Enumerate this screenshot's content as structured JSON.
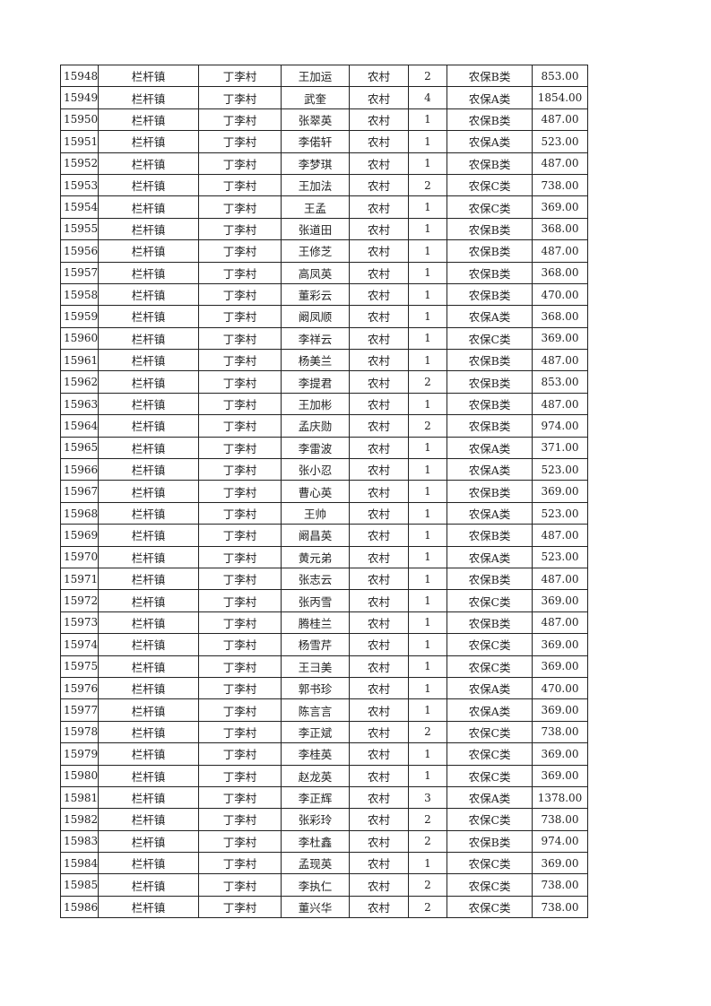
{
  "table": {
    "rows": [
      [
        "15948",
        "栏杆镇",
        "丁李村",
        "王加运",
        "农村",
        "2",
        "农保B类",
        "853.00"
      ],
      [
        "15949",
        "栏杆镇",
        "丁李村",
        "武奎",
        "农村",
        "4",
        "农保A类",
        "1854.00"
      ],
      [
        "15950",
        "栏杆镇",
        "丁李村",
        "张翠英",
        "农村",
        "1",
        "农保B类",
        "487.00"
      ],
      [
        "15951",
        "栏杆镇",
        "丁李村",
        "李偌轩",
        "农村",
        "1",
        "农保A类",
        "523.00"
      ],
      [
        "15952",
        "栏杆镇",
        "丁李村",
        "李梦琪",
        "农村",
        "1",
        "农保B类",
        "487.00"
      ],
      [
        "15953",
        "栏杆镇",
        "丁李村",
        "王加法",
        "农村",
        "2",
        "农保C类",
        "738.00"
      ],
      [
        "15954",
        "栏杆镇",
        "丁李村",
        "王孟",
        "农村",
        "1",
        "农保C类",
        "369.00"
      ],
      [
        "15955",
        "栏杆镇",
        "丁李村",
        "张道田",
        "农村",
        "1",
        "农保B类",
        "368.00"
      ],
      [
        "15956",
        "栏杆镇",
        "丁李村",
        "王修芝",
        "农村",
        "1",
        "农保B类",
        "487.00"
      ],
      [
        "15957",
        "栏杆镇",
        "丁李村",
        "高凤英",
        "农村",
        "1",
        "农保B类",
        "368.00"
      ],
      [
        "15958",
        "栏杆镇",
        "丁李村",
        "董彩云",
        "农村",
        "1",
        "农保B类",
        "470.00"
      ],
      [
        "15959",
        "栏杆镇",
        "丁李村",
        "阚凤顺",
        "农村",
        "1",
        "农保A类",
        "368.00"
      ],
      [
        "15960",
        "栏杆镇",
        "丁李村",
        "李祥云",
        "农村",
        "1",
        "农保C类",
        "369.00"
      ],
      [
        "15961",
        "栏杆镇",
        "丁李村",
        "杨美兰",
        "农村",
        "1",
        "农保B类",
        "487.00"
      ],
      [
        "15962",
        "栏杆镇",
        "丁李村",
        "李提君",
        "农村",
        "2",
        "农保B类",
        "853.00"
      ],
      [
        "15963",
        "栏杆镇",
        "丁李村",
        "王加彬",
        "农村",
        "1",
        "农保B类",
        "487.00"
      ],
      [
        "15964",
        "栏杆镇",
        "丁李村",
        "孟庆勋",
        "农村",
        "2",
        "农保B类",
        "974.00"
      ],
      [
        "15965",
        "栏杆镇",
        "丁李村",
        "李雷波",
        "农村",
        "1",
        "农保A类",
        "371.00"
      ],
      [
        "15966",
        "栏杆镇",
        "丁李村",
        "张小忍",
        "农村",
        "1",
        "农保A类",
        "523.00"
      ],
      [
        "15967",
        "栏杆镇",
        "丁李村",
        "曹心英",
        "农村",
        "1",
        "农保B类",
        "369.00"
      ],
      [
        "15968",
        "栏杆镇",
        "丁李村",
        "王帅",
        "农村",
        "1",
        "农保A类",
        "523.00"
      ],
      [
        "15969",
        "栏杆镇",
        "丁李村",
        "阚昌英",
        "农村",
        "1",
        "农保B类",
        "487.00"
      ],
      [
        "15970",
        "栏杆镇",
        "丁李村",
        "黄元弟",
        "农村",
        "1",
        "农保A类",
        "523.00"
      ],
      [
        "15971",
        "栏杆镇",
        "丁李村",
        "张志云",
        "农村",
        "1",
        "农保B类",
        "487.00"
      ],
      [
        "15972",
        "栏杆镇",
        "丁李村",
        "张丙雪",
        "农村",
        "1",
        "农保C类",
        "369.00"
      ],
      [
        "15973",
        "栏杆镇",
        "丁李村",
        "腾桂兰",
        "农村",
        "1",
        "农保B类",
        "487.00"
      ],
      [
        "15974",
        "栏杆镇",
        "丁李村",
        "杨雪芹",
        "农村",
        "1",
        "农保C类",
        "369.00"
      ],
      [
        "15975",
        "栏杆镇",
        "丁李村",
        "王彐美",
        "农村",
        "1",
        "农保C类",
        "369.00"
      ],
      [
        "15976",
        "栏杆镇",
        "丁李村",
        "郭书珍",
        "农村",
        "1",
        "农保A类",
        "470.00"
      ],
      [
        "15977",
        "栏杆镇",
        "丁李村",
        "陈言言",
        "农村",
        "1",
        "农保A类",
        "369.00"
      ],
      [
        "15978",
        "栏杆镇",
        "丁李村",
        "李正斌",
        "农村",
        "2",
        "农保C类",
        "738.00"
      ],
      [
        "15979",
        "栏杆镇",
        "丁李村",
        "李桂英",
        "农村",
        "1",
        "农保C类",
        "369.00"
      ],
      [
        "15980",
        "栏杆镇",
        "丁李村",
        "赵龙英",
        "农村",
        "1",
        "农保C类",
        "369.00"
      ],
      [
        "15981",
        "栏杆镇",
        "丁李村",
        "李正辉",
        "农村",
        "3",
        "农保A类",
        "1378.00"
      ],
      [
        "15982",
        "栏杆镇",
        "丁李村",
        "张彩玲",
        "农村",
        "2",
        "农保C类",
        "738.00"
      ],
      [
        "15983",
        "栏杆镇",
        "丁李村",
        "李杜鑫",
        "农村",
        "2",
        "农保B类",
        "974.00"
      ],
      [
        "15984",
        "栏杆镇",
        "丁李村",
        "孟现英",
        "农村",
        "1",
        "农保C类",
        "369.00"
      ],
      [
        "15985",
        "栏杆镇",
        "丁李村",
        "李执仁",
        "农村",
        "2",
        "农保C类",
        "738.00"
      ],
      [
        "15986",
        "栏杆镇",
        "丁李村",
        "董兴华",
        "农村",
        "2",
        "农保C类",
        "738.00"
      ]
    ]
  }
}
